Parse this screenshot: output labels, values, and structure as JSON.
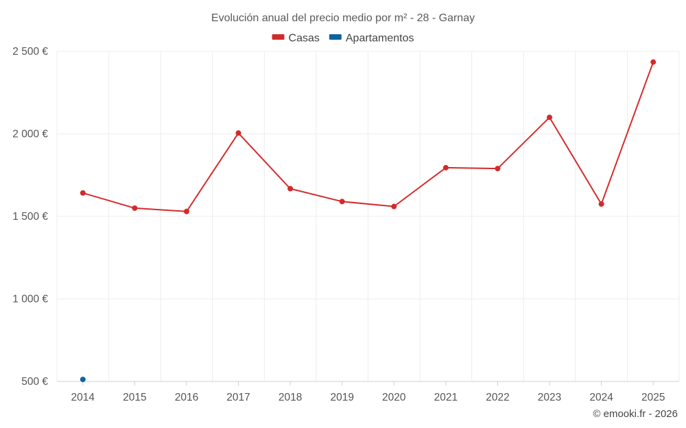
{
  "chart_data": {
    "type": "line",
    "title": "Evolución anual del precio medio por m² - 28 - Garnay",
    "categories": [
      "2014",
      "2015",
      "2016",
      "2017",
      "2018",
      "2019",
      "2020",
      "2021",
      "2022",
      "2023",
      "2024",
      "2025"
    ],
    "series": [
      {
        "name": "Casas",
        "color": "#d42a2a",
        "values": [
          1642,
          1550,
          1530,
          2005,
          1668,
          1590,
          1560,
          1795,
          1790,
          2100,
          1575,
          2435
        ]
      },
      {
        "name": "Apartamentos",
        "color": "#0e62a0",
        "values": [
          512,
          null,
          null,
          null,
          null,
          null,
          null,
          null,
          null,
          null,
          null,
          null
        ]
      }
    ],
    "ylim": [
      500,
      2500
    ],
    "yticks": [
      500,
      1000,
      1500,
      2000,
      2500
    ],
    "ytick_labels": [
      "500 €",
      "1 000 €",
      "1 500 €",
      "2 000 €",
      "2 500 €"
    ],
    "xlabel": "",
    "ylabel": "",
    "grid": true,
    "legend_position": "top-center"
  },
  "credit": "© emooki.fr - 2026"
}
